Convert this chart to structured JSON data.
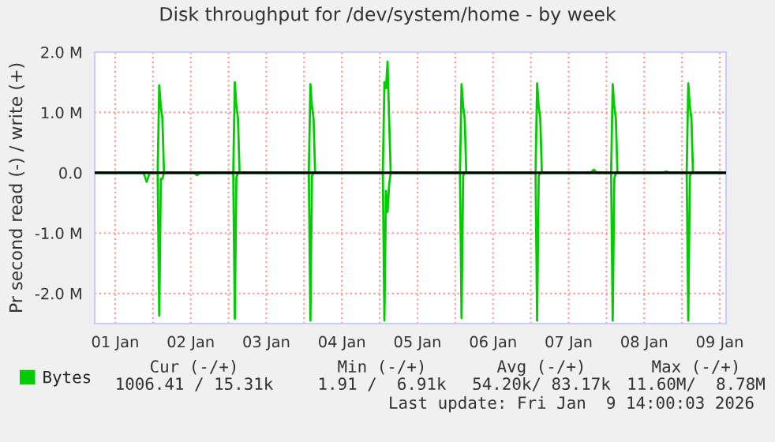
{
  "chart_data": {
    "type": "line",
    "title": "Disk throughput for /dev/system/home - by week",
    "ylabel": "Pr second read (-) / write (+)",
    "xlim": [
      "2026-01-01T05:30",
      "2026-01-09T14:00"
    ],
    "xticks": [
      {
        "value": "2026-01-01T12:00",
        "label": "01 Jan"
      },
      {
        "value": "2026-01-02T00:00",
        "label": null
      },
      {
        "value": "2026-01-02T12:00",
        "label": "02 Jan"
      },
      {
        "value": "2026-01-03T00:00",
        "label": null
      },
      {
        "value": "2026-01-03T12:00",
        "label": "03 Jan"
      },
      {
        "value": "2026-01-04T00:00",
        "label": null
      },
      {
        "value": "2026-01-04T12:00",
        "label": "04 Jan"
      },
      {
        "value": "2026-01-05T00:00",
        "label": null
      },
      {
        "value": "2026-01-05T12:00",
        "label": "05 Jan"
      },
      {
        "value": "2026-01-06T00:00",
        "label": null
      },
      {
        "value": "2026-01-06T12:00",
        "label": "06 Jan"
      },
      {
        "value": "2026-01-07T00:00",
        "label": null
      },
      {
        "value": "2026-01-07T12:00",
        "label": "07 Jan"
      },
      {
        "value": "2026-01-08T00:00",
        "label": null
      },
      {
        "value": "2026-01-08T12:00",
        "label": "08 Jan"
      },
      {
        "value": "2026-01-09T00:00",
        "label": null
      },
      {
        "value": "2026-01-09T12:00",
        "label": "09 Jan"
      }
    ],
    "ylim": [
      -2500000,
      2000000
    ],
    "yticks": [
      {
        "value": -2000000,
        "label": "-2.0 M"
      },
      {
        "value": -1000000,
        "label": "-1.0 M"
      },
      {
        "value": 0,
        "label": "0.0"
      },
      {
        "value": 1000000,
        "label": "1.0 M"
      },
      {
        "value": 2000000,
        "label": "2.0 M"
      }
    ],
    "grid": true,
    "legend": "bottom left",
    "series": [
      {
        "name": "Bytes",
        "color": "#00cc00",
        "x": [
          "2026-01-01T05:30",
          "2026-01-02T01:30",
          "2026-01-02T02:00",
          "2026-01-02T02:30",
          "2026-01-02T03:00",
          "2026-01-02T03:30",
          "2026-01-03T01:30",
          "2026-01-03T02:00",
          "2026-01-03T02:30",
          "2026-01-03T03:00",
          "2026-01-03T03:30",
          "2026-01-04T01:30",
          "2026-01-04T02:00",
          "2026-01-04T02:30",
          "2026-01-04T03:00",
          "2026-01-04T03:30",
          "2026-01-05T01:00",
          "2026-01-05T01:30",
          "2026-01-05T02:00",
          "2026-01-05T02:30",
          "2026-01-05T03:00",
          "2026-01-05T03:30",
          "2026-01-06T01:30",
          "2026-01-06T02:00",
          "2026-01-06T02:30",
          "2026-01-06T03:00",
          "2026-01-06T03:30",
          "2026-01-07T01:30",
          "2026-01-07T02:00",
          "2026-01-07T02:30",
          "2026-01-07T03:00",
          "2026-01-07T03:30",
          "2026-01-07T19:00",
          "2026-01-07T20:00",
          "2026-01-07T21:00",
          "2026-01-08T01:30",
          "2026-01-08T02:00",
          "2026-01-08T02:30",
          "2026-01-08T03:00",
          "2026-01-08T03:30",
          "2026-01-08T18:00",
          "2026-01-08T19:00",
          "2026-01-08T20:00",
          "2026-01-09T01:30",
          "2026-01-09T02:00",
          "2026-01-09T02:30",
          "2026-01-09T03:00",
          "2026-01-09T03:30",
          "2026-01-09T14:00"
        ],
        "values": [
          0,
          0,
          1450000,
          1100000,
          900000,
          0,
          0,
          1500000,
          1100000,
          900000,
          0,
          0,
          1470000,
          1100000,
          900000,
          0,
          0,
          1500000,
          1400000,
          1840000,
          900000,
          0,
          0,
          1470000,
          1100000,
          900000,
          0,
          0,
          1480000,
          1100000,
          900000,
          0,
          0,
          50000,
          0,
          0,
          1470000,
          1100000,
          900000,
          0,
          0,
          20000,
          0,
          0,
          1480000,
          1100000,
          900000,
          0,
          0
        ]
      },
      {
        "color": "#00cc00",
        "x": [
          "2026-01-01T05:30",
          "2026-01-01T21:00",
          "2026-01-01T22:00",
          "2026-01-01T23:00",
          "2026-01-02T01:30",
          "2026-01-02T02:00",
          "2026-01-02T02:30",
          "2026-01-02T03:00",
          "2026-01-02T03:30",
          "2026-01-02T13:00",
          "2026-01-02T14:00",
          "2026-01-02T15:00",
          "2026-01-03T01:30",
          "2026-01-03T02:00",
          "2026-01-03T02:30",
          "2026-01-03T03:00",
          "2026-01-04T01:30",
          "2026-01-04T02:00",
          "2026-01-04T02:30",
          "2026-01-04T03:00",
          "2026-01-05T01:00",
          "2026-01-05T01:30",
          "2026-01-05T02:00",
          "2026-01-05T02:30",
          "2026-01-05T03:00",
          "2026-01-05T03:30",
          "2026-01-06T01:30",
          "2026-01-06T02:00",
          "2026-01-06T02:30",
          "2026-01-06T03:00",
          "2026-01-07T01:30",
          "2026-01-07T02:00",
          "2026-01-07T02:30",
          "2026-01-07T03:00",
          "2026-01-08T01:30",
          "2026-01-08T02:00",
          "2026-01-08T02:30",
          "2026-01-08T03:00",
          "2026-01-09T01:30",
          "2026-01-09T02:00",
          "2026-01-09T02:30",
          "2026-01-09T03:00",
          "2026-01-09T14:00"
        ],
        "values": [
          0,
          0,
          -150000,
          0,
          0,
          -2370000,
          -100000,
          -100000,
          0,
          0,
          -40000,
          0,
          0,
          -2420000,
          -80000,
          0,
          0,
          -2450000,
          -50000,
          0,
          0,
          -2450000,
          -300000,
          -650000,
          -200000,
          0,
          0,
          -2410000,
          -50000,
          0,
          0,
          -2450000,
          -50000,
          0,
          0,
          -2450000,
          -100000,
          0,
          0,
          -2450000,
          -50000,
          0,
          0
        ]
      }
    ],
    "ref_lines": [
      {
        "axis": "y",
        "value": 0,
        "color": "#000000"
      }
    ],
    "annotations": [
      "Cur (-/+)",
      "Min (-/+)",
      "Avg (-/+)",
      "Max (-/+)",
      "1006.41 / 15.31k",
      "1.91 /  6.91k",
      "54.20k/ 83.17k",
      "11.60M/  8.78M",
      "Last update: Fri Jan  9 14:00:03 2026"
    ]
  }
}
